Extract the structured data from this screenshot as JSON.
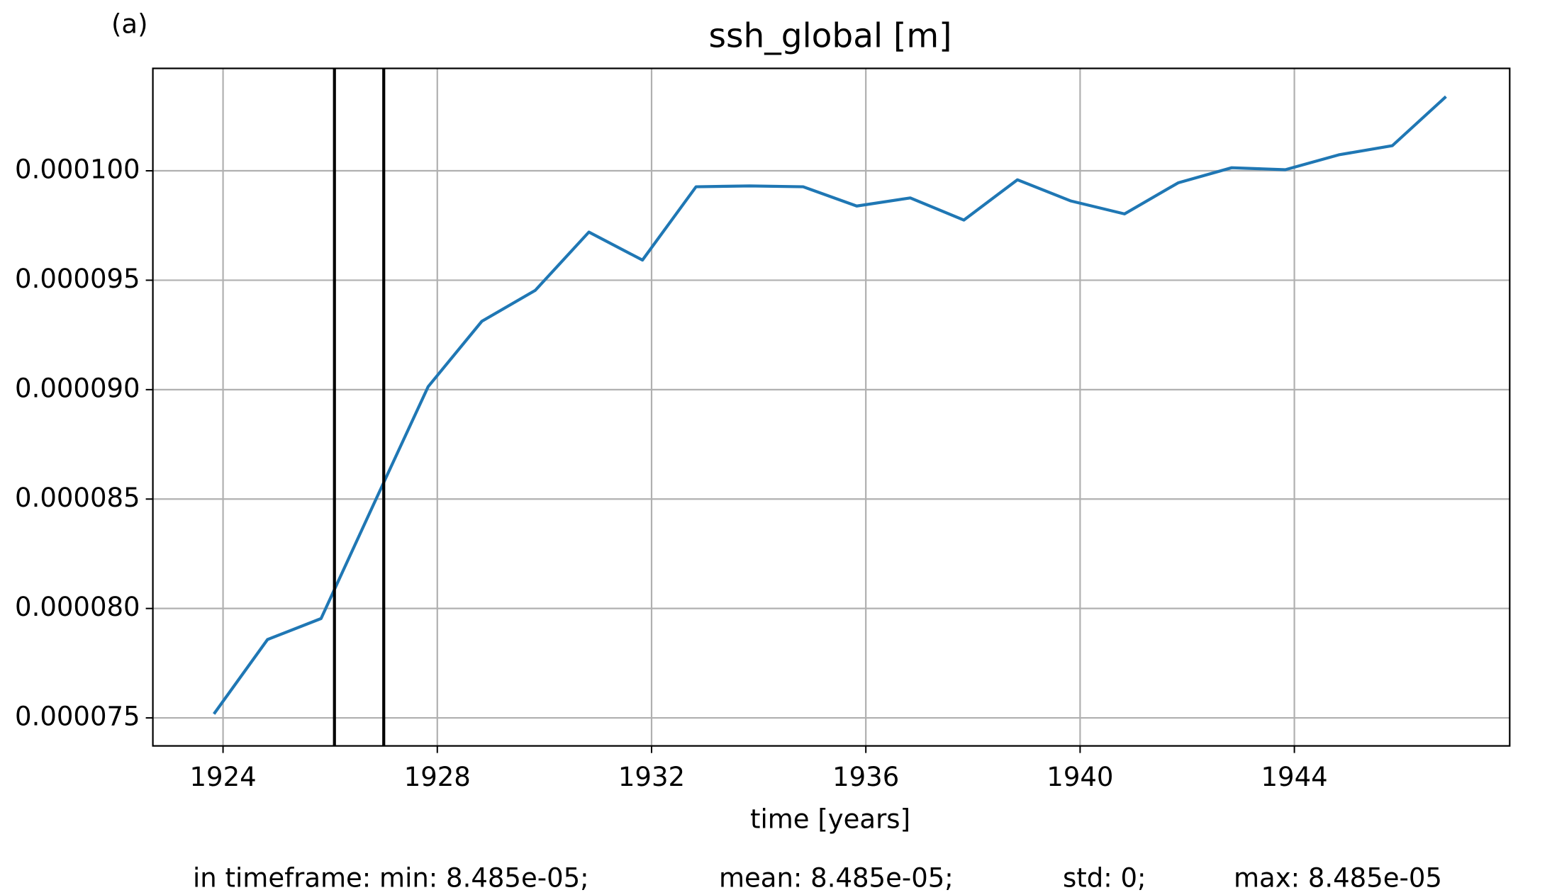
{
  "chart_data": {
    "type": "line",
    "panel_label": "(a)",
    "title": "ssh_global [m]",
    "x_label": "time [years]",
    "footer": [
      "in timeframe: min: 8.485e-05;",
      "mean: 8.485e-05;",
      "std: 0;",
      "max: 8.485e-05"
    ],
    "x": [
      1923.83,
      1924.83,
      1925.83,
      1926.83,
      1927.83,
      1928.83,
      1929.83,
      1930.83,
      1931.83,
      1932.83,
      1933.83,
      1934.83,
      1935.83,
      1936.83,
      1937.83,
      1938.83,
      1939.83,
      1940.83,
      1941.83,
      1942.83,
      1943.83,
      1944.83,
      1945.83,
      1946.83
    ],
    "series": [
      {
        "name": "ssh_global",
        "color": "#1f77b4",
        "values": [
          7.518e-05,
          7.858e-05,
          7.954e-05,
          8.486e-05,
          9.014e-05,
          9.312e-05,
          9.454e-05,
          9.72e-05,
          9.592e-05,
          9.927e-05,
          9.931e-05,
          9.927e-05,
          9.839e-05,
          9.876e-05,
          9.775e-05,
          9.959e-05,
          9.862e-05,
          9.803e-05,
          9.945e-05,
          0.00010014,
          0.00010005,
          0.00010073,
          0.00010115,
          0.00010339
        ]
      }
    ],
    "vlines": [
      1926.08,
      1927.0
    ],
    "vline_color": "#000000",
    "xlim": [
      1922.69,
      1948.02
    ],
    "ylim": [
      7.372e-05,
      0.00010468
    ],
    "xticks": [
      1924,
      1928,
      1932,
      1936,
      1940,
      1944
    ],
    "yticks": [
      {
        "value": 7.5e-05,
        "label": "0.000075"
      },
      {
        "value": 8e-05,
        "label": "0.000080"
      },
      {
        "value": 8.5e-05,
        "label": "0.000085"
      },
      {
        "value": 9e-05,
        "label": "0.000090"
      },
      {
        "value": 9.5e-05,
        "label": "0.000095"
      },
      {
        "value": 0.0001,
        "label": "0.000100"
      }
    ],
    "grid": true
  }
}
